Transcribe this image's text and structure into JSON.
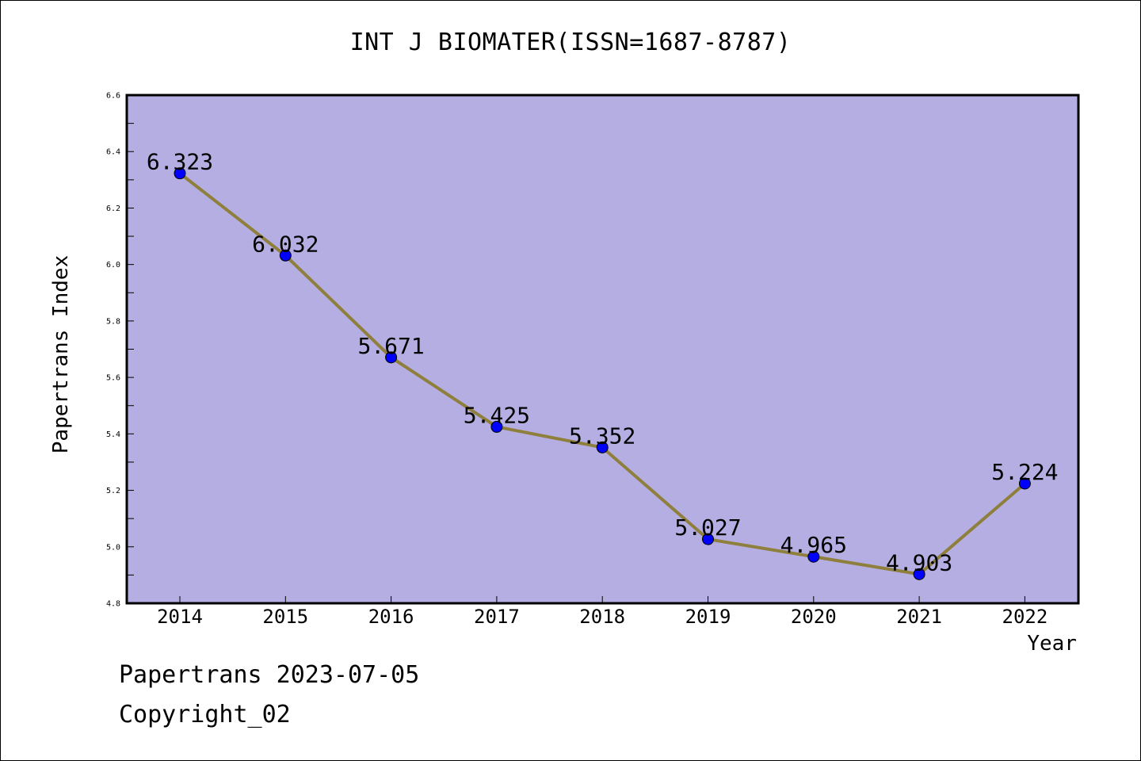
{
  "colors": {
    "plot_background": "#b4aee2",
    "line": "#8f7f3c",
    "marker": "#0000ff",
    "axis": "#000000"
  },
  "footer": {
    "line1": "Papertrans 2023-07-05",
    "line2": "Copyright_02"
  },
  "chart_data": {
    "type": "line",
    "title": "INT J BIOMATER(ISSN=1687-8787)",
    "xlabel": "Year",
    "ylabel": "Papertrans Index",
    "categories": [
      "2014",
      "2015",
      "2016",
      "2017",
      "2018",
      "2019",
      "2020",
      "2021",
      "2022"
    ],
    "values": [
      6.323,
      6.032,
      5.671,
      5.425,
      5.352,
      5.027,
      4.965,
      4.903,
      5.224
    ],
    "data_labels": [
      "6.323",
      "6.032",
      "5.671",
      "5.425",
      "5.352",
      "5.027",
      "4.965",
      "4.903",
      "5.224"
    ],
    "ylim": [
      4.8,
      6.6
    ],
    "yticks": [
      "4.8",
      "5.0",
      "5.2",
      "5.4",
      "5.6",
      "5.8",
      "6.0",
      "6.2",
      "6.4",
      "6.6"
    ],
    "grid": false,
    "legend": "none"
  }
}
